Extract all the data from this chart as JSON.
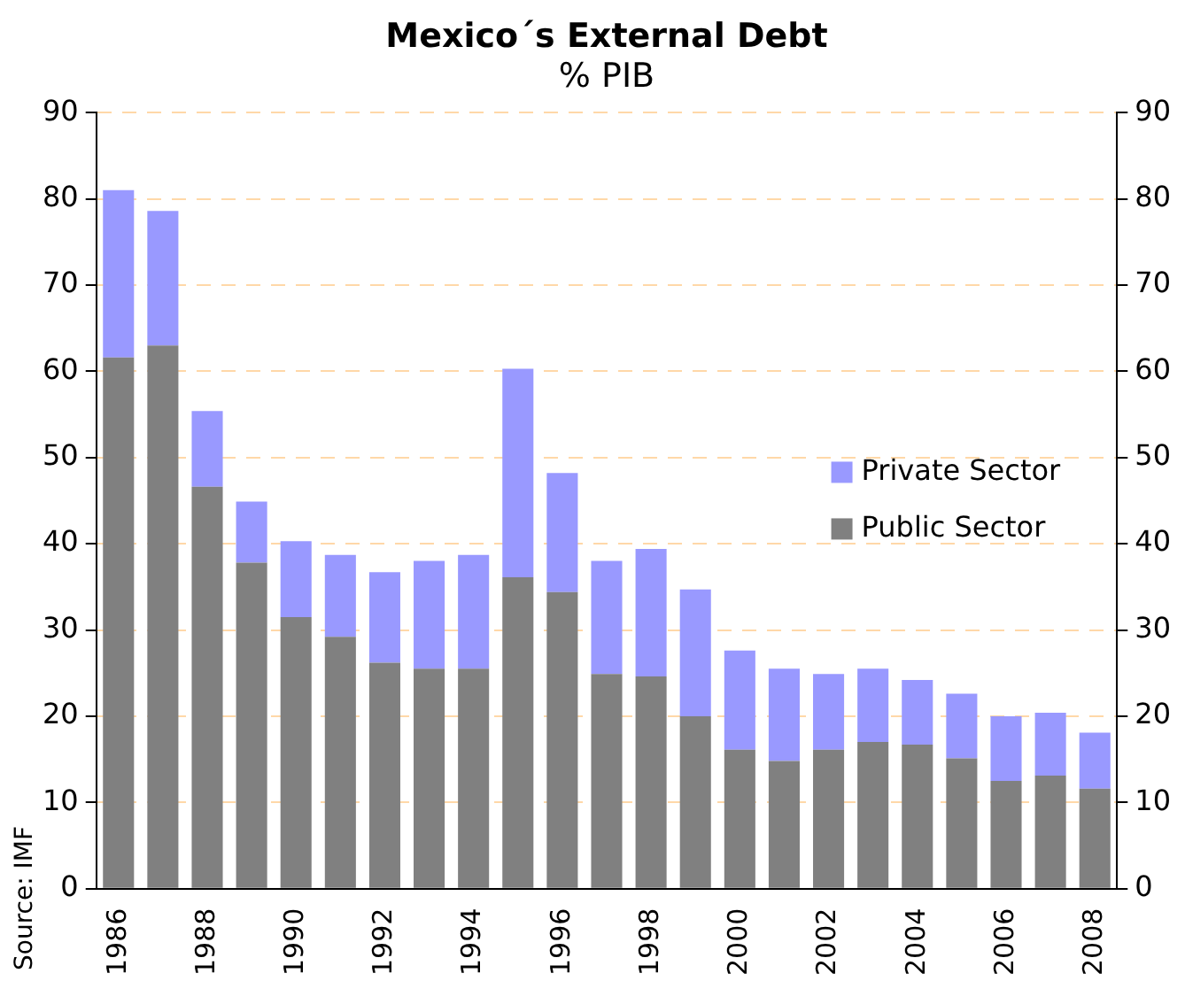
{
  "chart_data": {
    "type": "bar",
    "title": "Mexico´s External Debt",
    "subtitle": "% PIB",
    "stacked": true,
    "categories": [
      "1986",
      null,
      "1988",
      null,
      "1990",
      null,
      "1992",
      null,
      "1994",
      null,
      "1996",
      null,
      "1998",
      null,
      "2000",
      null,
      "2002",
      null,
      "2004",
      null,
      "2006",
      null,
      "2008"
    ],
    "series": [
      {
        "name": "Public Sector",
        "color": "#808080",
        "values": [
          61.6,
          63.0,
          46.6,
          37.8,
          31.5,
          29.2,
          26.2,
          25.5,
          25.5,
          36.1,
          34.4,
          24.9,
          24.6,
          20.0,
          16.1,
          14.8,
          16.1,
          17.0,
          16.7,
          15.1,
          12.5,
          13.1,
          11.6
        ]
      },
      {
        "name": "Private Sector",
        "color": "#9999ff",
        "values": [
          19.4,
          15.6,
          8.8,
          7.1,
          8.8,
          9.5,
          10.5,
          12.5,
          13.2,
          24.2,
          13.8,
          13.1,
          14.8,
          14.7,
          11.5,
          10.7,
          8.8,
          8.5,
          7.5,
          7.5,
          7.5,
          7.3,
          6.5
        ]
      }
    ],
    "ylim": [
      0,
      90
    ],
    "yticks": [
      0,
      10,
      20,
      30,
      40,
      50,
      60,
      70,
      80,
      90
    ],
    "y2lim": [
      0,
      90
    ],
    "y2ticks": [
      0,
      10,
      20,
      30,
      40,
      50,
      60,
      70,
      80,
      90
    ],
    "grid": "y",
    "legend": "right",
    "annotations": [
      "Source: IMF"
    ]
  }
}
